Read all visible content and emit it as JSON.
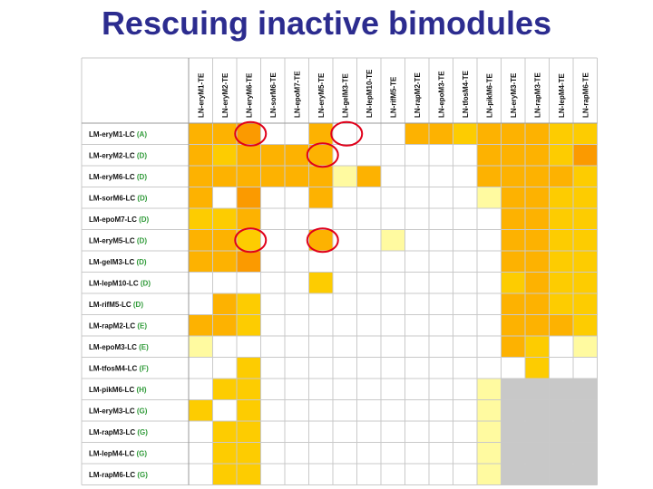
{
  "title": "Rescuing inactive bimodules",
  "colors": {
    "strong": "#fdb201",
    "medium": "#fdcc01",
    "light": "#fffaa0",
    "peak": "#fb9a00",
    "gray": "#c8c8c8",
    "empty": "#ffffff",
    "grid": "#c9c9c9",
    "circle": "#e0001a",
    "code": "#2f9a38"
  },
  "columns": [
    "LN-eryM1-TE",
    "LN-eryM2-TE",
    "LN-eryM6-TE",
    "LN-sorM6-TE",
    "LN-epoM7-TE",
    "LN-eryM5-TE",
    "LN-gelM3-TE",
    "LN-lepM10-TE",
    "LN-rifM5-TE",
    "LN-rapM2-TE",
    "LN-epoM3-TE",
    "LN-tfosM4-TE",
    "LN-pikM6-TE",
    "LN-eryM3-TE",
    "LN-rapM3-TE",
    "LN-lepM4-TE",
    "LN-rapM6-TE"
  ],
  "rows": [
    {
      "label": "LM-eryM1-LC",
      "code": "(A)"
    },
    {
      "label": "LM-eryM2-LC",
      "code": "(D)"
    },
    {
      "label": "LM-eryM6-LC",
      "code": "(D)"
    },
    {
      "label": "LM-sorM6-LC",
      "code": "(D)"
    },
    {
      "label": "LM-epoM7-LC",
      "code": "(D)"
    },
    {
      "label": "LM-eryM5-LC",
      "code": "(D)"
    },
    {
      "label": "LM-gelM3-LC",
      "code": "(D)"
    },
    {
      "label": "LM-lepM10-LC",
      "code": "(D)"
    },
    {
      "label": "LM-rifM5-LC",
      "code": "(D)"
    },
    {
      "label": "LM-rapM2-LC",
      "code": "(E)"
    },
    {
      "label": "LM-epoM3-LC",
      "code": "(E)"
    },
    {
      "label": "LM-tfosM4-LC",
      "code": "(F)"
    },
    {
      "label": "LM-pikM6-LC",
      "code": "(H)"
    },
    {
      "label": "LM-eryM3-LC",
      "code": "(G)"
    },
    {
      "label": "LM-rapM3-LC",
      "code": "(G)"
    },
    {
      "label": "LM-lepM4-LC",
      "code": "(G)"
    },
    {
      "label": "LM-rapM6-LC",
      "code": "(G)"
    }
  ],
  "legend_levels": {
    "0": "empty",
    "1": "light",
    "2": "medium",
    "3": "strong",
    "4": "peak",
    "5": "gray"
  },
  "cells": [
    [
      3,
      3,
      4,
      0,
      0,
      3,
      0,
      0,
      0,
      3,
      3,
      2,
      3,
      3,
      3,
      2,
      2
    ],
    [
      3,
      2,
      3,
      3,
      3,
      3,
      0,
      0,
      0,
      0,
      0,
      0,
      3,
      3,
      3,
      2,
      4
    ],
    [
      3,
      3,
      3,
      3,
      3,
      3,
      1,
      3,
      0,
      0,
      0,
      0,
      3,
      3,
      3,
      3,
      2
    ],
    [
      3,
      0,
      4,
      0,
      0,
      3,
      0,
      0,
      0,
      0,
      0,
      0,
      1,
      3,
      3,
      2,
      2
    ],
    [
      2,
      2,
      3,
      0,
      0,
      0,
      0,
      0,
      0,
      0,
      0,
      0,
      0,
      3,
      3,
      2,
      2
    ],
    [
      3,
      3,
      2,
      0,
      0,
      3,
      0,
      0,
      1,
      0,
      0,
      0,
      0,
      3,
      3,
      2,
      2
    ],
    [
      3,
      3,
      4,
      0,
      0,
      0,
      0,
      0,
      0,
      0,
      0,
      0,
      0,
      3,
      3,
      2,
      2
    ],
    [
      0,
      0,
      0,
      0,
      0,
      2,
      0,
      0,
      0,
      0,
      0,
      0,
      0,
      2,
      3,
      2,
      2
    ],
    [
      0,
      3,
      2,
      0,
      0,
      0,
      0,
      0,
      0,
      0,
      0,
      0,
      0,
      3,
      3,
      2,
      2
    ],
    [
      3,
      3,
      2,
      0,
      0,
      0,
      0,
      0,
      0,
      0,
      0,
      0,
      0,
      3,
      3,
      3,
      2
    ],
    [
      1,
      0,
      0,
      0,
      0,
      0,
      0,
      0,
      0,
      0,
      0,
      0,
      0,
      3,
      2,
      0,
      1
    ],
    [
      0,
      0,
      2,
      0,
      0,
      0,
      0,
      0,
      0,
      0,
      0,
      0,
      0,
      0,
      2,
      0,
      0
    ],
    [
      0,
      2,
      2,
      0,
      0,
      0,
      0,
      0,
      0,
      0,
      0,
      0,
      1,
      5,
      5,
      5,
      5
    ],
    [
      2,
      0,
      2,
      0,
      0,
      0,
      0,
      0,
      0,
      0,
      0,
      0,
      1,
      5,
      5,
      5,
      5
    ],
    [
      0,
      2,
      2,
      0,
      0,
      0,
      0,
      0,
      0,
      0,
      0,
      0,
      1,
      5,
      5,
      5,
      5
    ],
    [
      0,
      2,
      2,
      0,
      0,
      0,
      0,
      0,
      0,
      0,
      0,
      0,
      1,
      5,
      5,
      5,
      5
    ],
    [
      0,
      2,
      2,
      0,
      0,
      0,
      0,
      0,
      0,
      0,
      0,
      0,
      1,
      5,
      5,
      5,
      5
    ]
  ],
  "highlights": [
    {
      "row": 0,
      "col": 2
    },
    {
      "row": 0,
      "col": 6
    },
    {
      "row": 1,
      "col": 5
    },
    {
      "row": 5,
      "col": 2
    },
    {
      "row": 5,
      "col": 5
    }
  ]
}
